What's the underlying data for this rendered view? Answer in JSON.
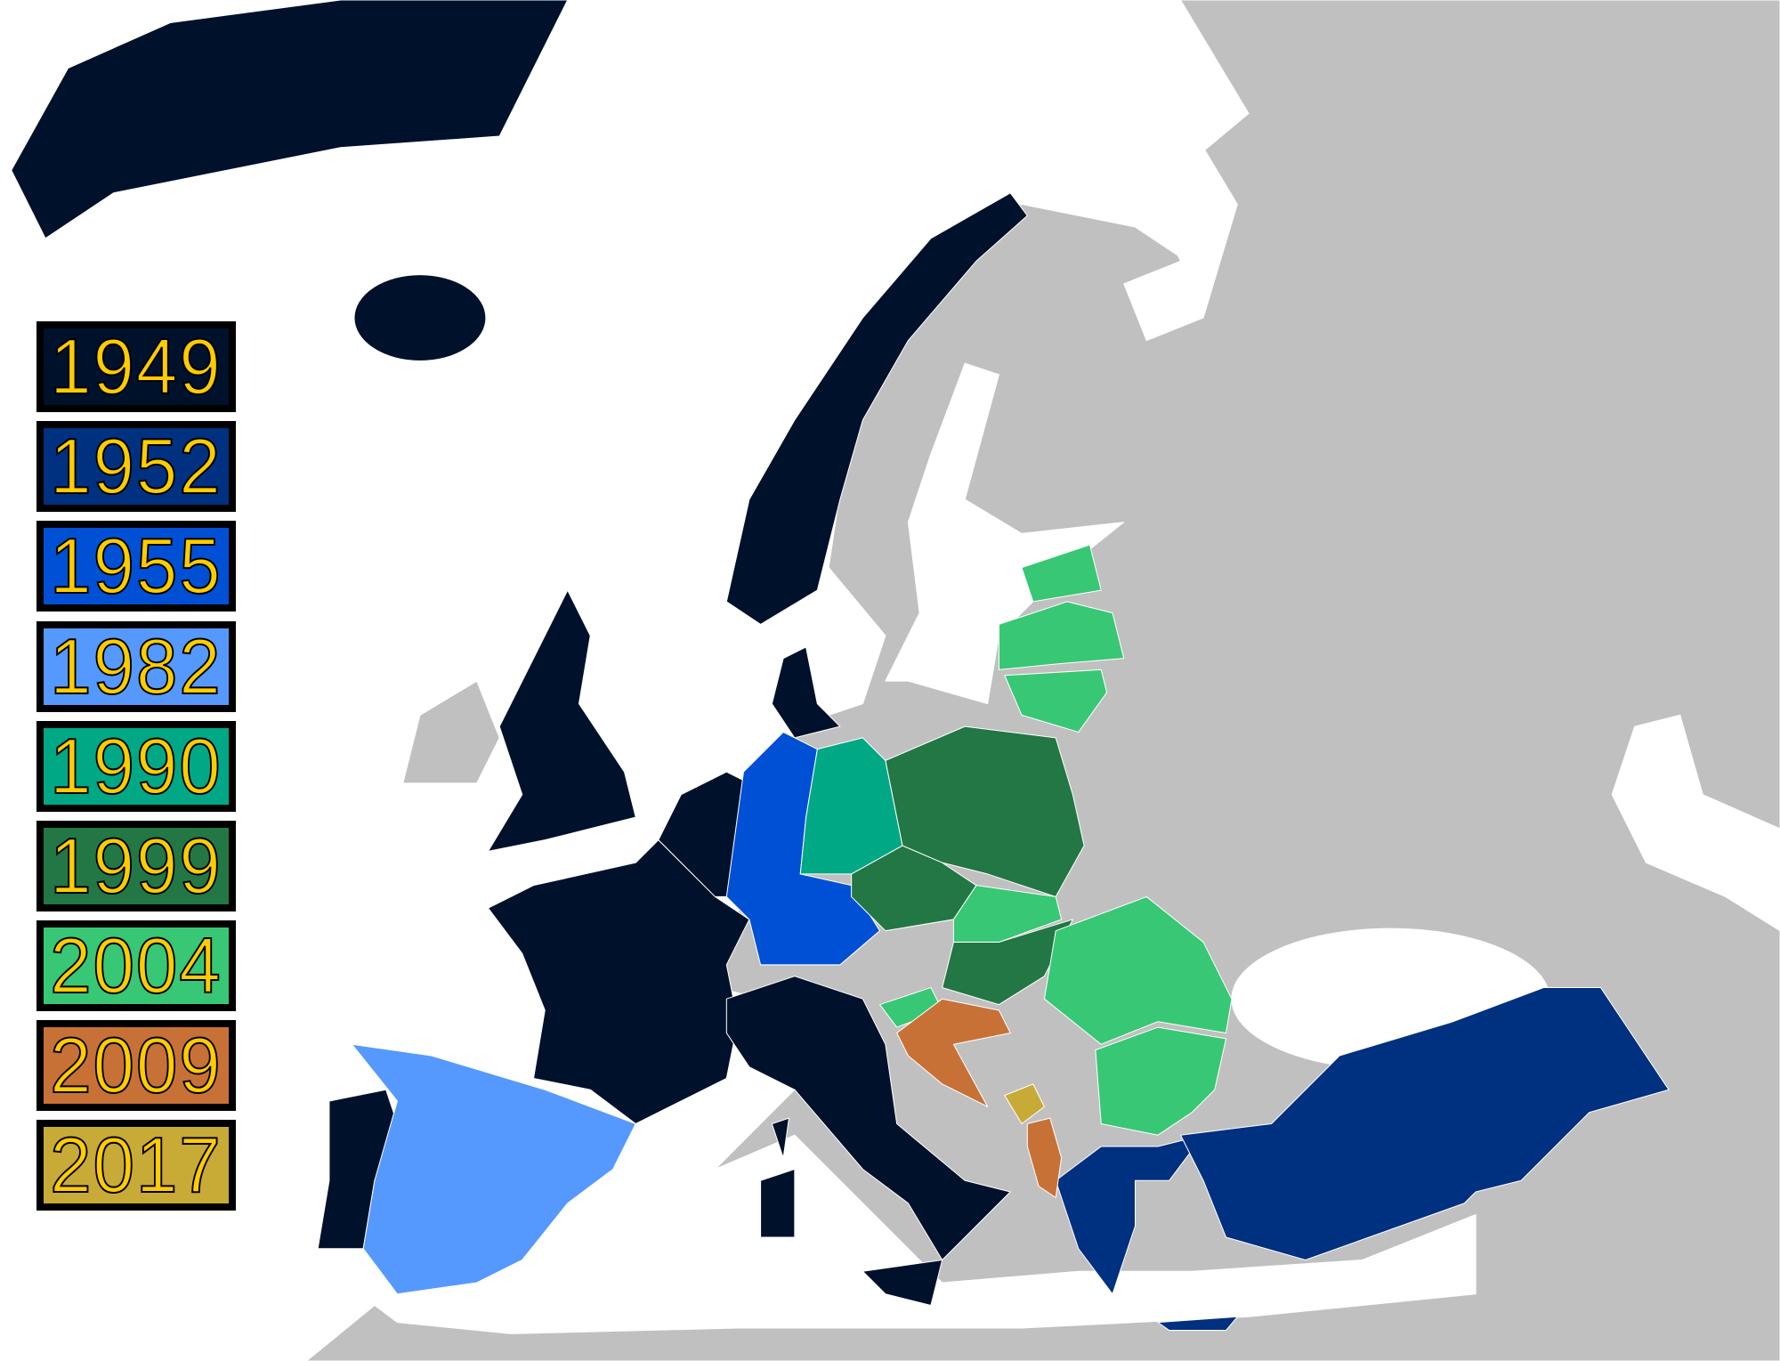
{
  "colors": {
    "non_member": "#C0C0C0",
    "sea": "#FFFFFF",
    "y1949": "#00112B",
    "y1952": "#003080",
    "y1955": "#0050D6",
    "y1982": "#5599FF",
    "y1990": "#00A886",
    "y1999": "#227744",
    "y2004": "#38C774",
    "y2009": "#C87137",
    "y2017": "#C8AA37",
    "legend_text": "#FFCC00"
  },
  "legend": [
    {
      "year": "1949",
      "key": "y1949"
    },
    {
      "year": "1952",
      "key": "y1952"
    },
    {
      "year": "1955",
      "key": "y1955"
    },
    {
      "year": "1982",
      "key": "y1982"
    },
    {
      "year": "1990",
      "key": "y1990"
    },
    {
      "year": "1999",
      "key": "y1999"
    },
    {
      "year": "2004",
      "key": "y2004"
    },
    {
      "year": "2009",
      "key": "y2009"
    },
    {
      "year": "2017",
      "key": "y2017"
    }
  ]
}
